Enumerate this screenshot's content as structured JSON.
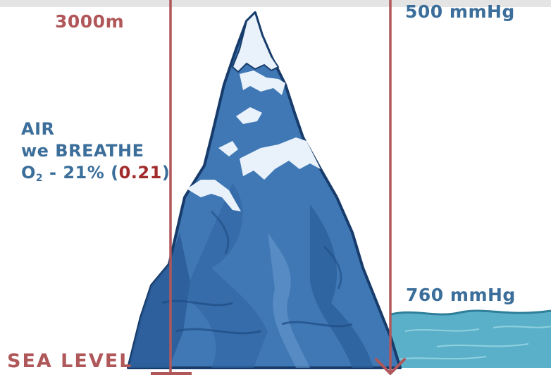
{
  "altitude": {
    "label": "3000m"
  },
  "pressure_top": {
    "label": "500 mmHg"
  },
  "air_info": {
    "line1": "AIR",
    "line2": "we BREATHE",
    "o2_symbol": "O",
    "o2_subscript": "2",
    "o2_percent": " - 21% (",
    "o2_fraction": "0.21",
    "o2_close": ")"
  },
  "pressure_sea": {
    "label": "760 mmHg"
  },
  "sea_level": {
    "label": "SEA LEVEL"
  },
  "colors": {
    "mountain_dark": "#1f4c84",
    "mountain_mid": "#3f78b5",
    "mountain_light": "#6b9bd0",
    "snow": "#e9f2fb",
    "water": "#5ab0c8",
    "line_red": "#b0575a",
    "text_blue": "#3b6e9a",
    "value_red": "#a12b2b"
  }
}
